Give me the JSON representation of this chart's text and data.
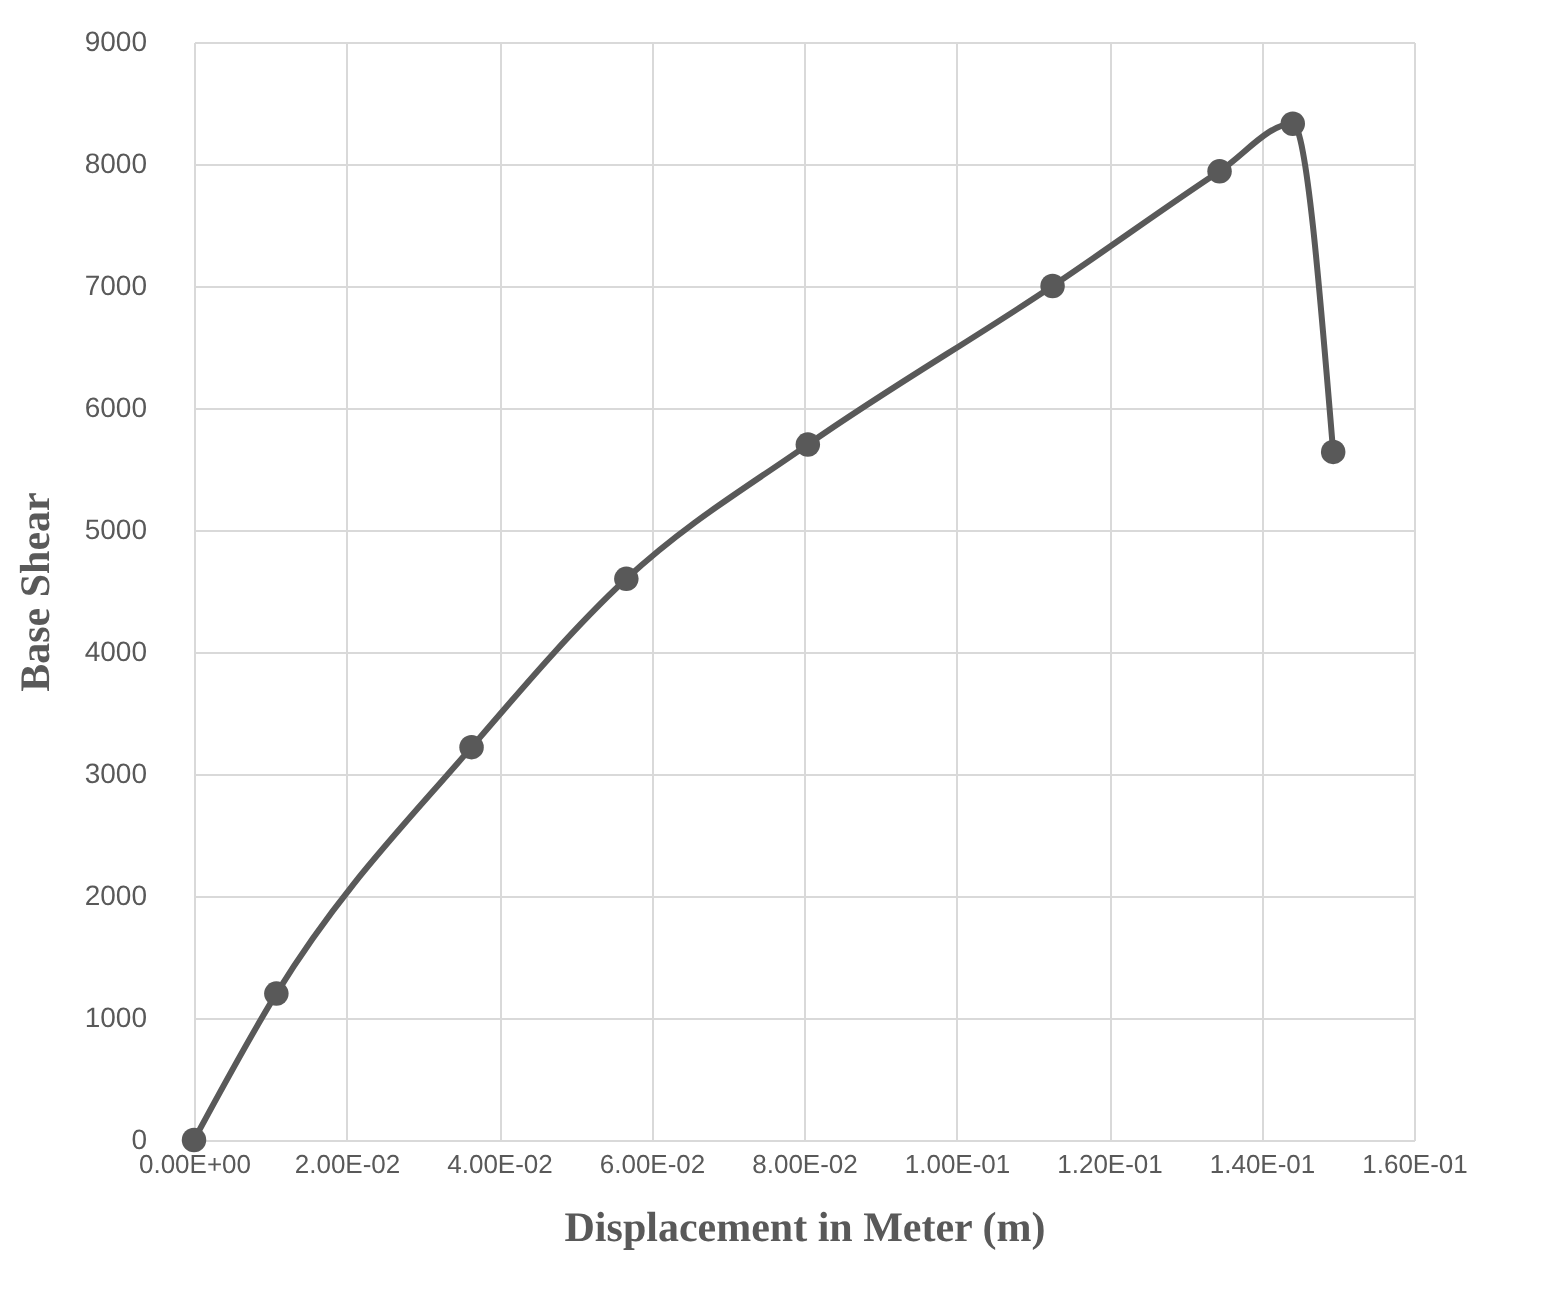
{
  "chart_data": {
    "type": "line",
    "xlabel": "Displacement in Meter (m)",
    "ylabel": "Base Shear",
    "xlim": [
      0,
      0.16
    ],
    "ylim": [
      0,
      9000
    ],
    "xticks": [
      {
        "value": 0,
        "label": "0.00E+00"
      },
      {
        "value": 0.02,
        "label": "2.00E-02"
      },
      {
        "value": 0.04,
        "label": "4.00E-02"
      },
      {
        "value": 0.06,
        "label": "6.00E-02"
      },
      {
        "value": 0.08,
        "label": "8.00E-02"
      },
      {
        "value": 0.1,
        "label": "1.00E-01"
      },
      {
        "value": 0.12,
        "label": "1.20E-01"
      },
      {
        "value": 0.14,
        "label": "1.40E-01"
      },
      {
        "value": 0.16,
        "label": "1.60E-01"
      }
    ],
    "yticks": [
      0,
      1000,
      2000,
      3000,
      4000,
      5000,
      6000,
      7000,
      8000,
      9000
    ],
    "grid": true,
    "marker": "circle",
    "line_style": "solid",
    "series": [
      {
        "color": "#595959",
        "x": [
          0,
          0.0108,
          0.0364,
          0.0567,
          0.0805,
          0.1126,
          0.1345,
          0.1441,
          0.1494
        ],
        "values": [
          0,
          1200,
          3220,
          4600,
          5700,
          7000,
          7940,
          8330,
          5640
        ]
      }
    ]
  }
}
